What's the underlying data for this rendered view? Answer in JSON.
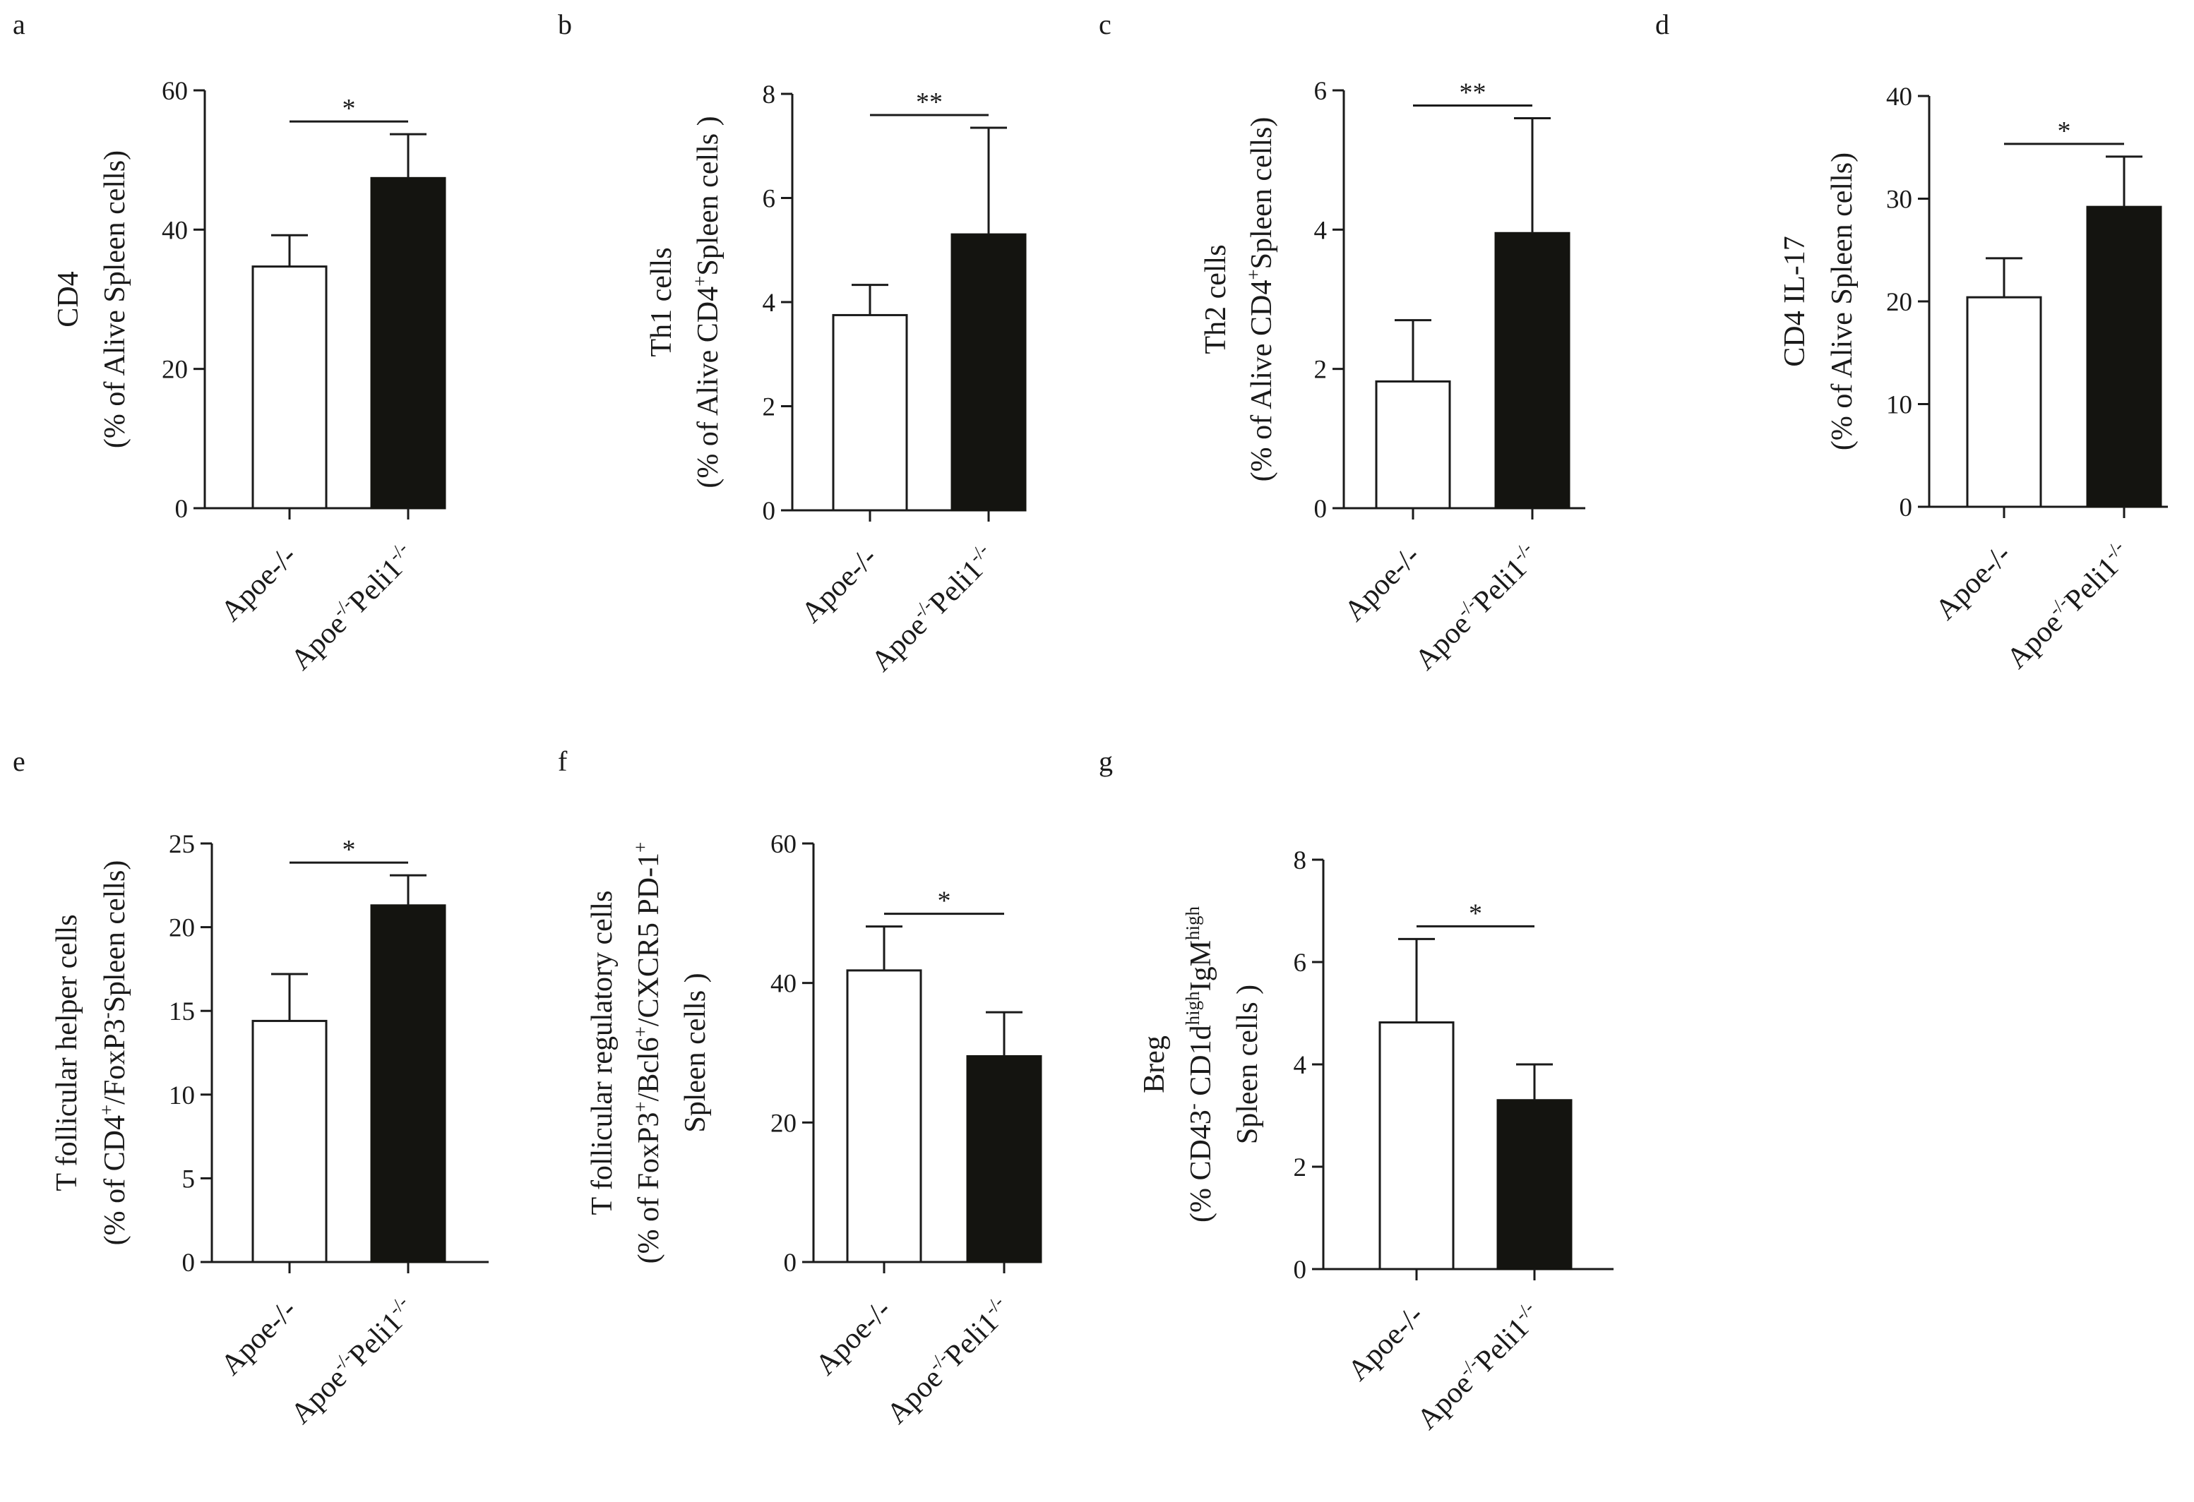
{
  "colors": {
    "control_bar": "#ffffff",
    "knockout_bar": "#141410",
    "ink": "#1a1a1a"
  },
  "categories": [
    {
      "base": "Apoe",
      "sup": "-/-",
      "label": "Apoe -/-"
    },
    {
      "base": "Apoe",
      "sup": "-/-",
      "mid": "Peli1",
      "sup2": "-/-",
      "label": "Apoe-/- Peli1-/-"
    }
  ],
  "chart_data": [
    {
      "panel": "a",
      "type": "bar",
      "ylabel": [
        [
          {
            "t": "CD4"
          }
        ],
        [
          {
            "t": "(% of Alive Spleen cells)"
          }
        ]
      ],
      "ylim": [
        0,
        60
      ],
      "yticks": [
        0,
        20,
        40,
        60
      ],
      "series": [
        {
          "name": "value",
          "values": [
            34.7,
            47.4
          ]
        },
        {
          "name": "error",
          "values": [
            4.5,
            6.3
          ]
        }
      ],
      "significance": "*"
    },
    {
      "panel": "b",
      "type": "bar",
      "ylabel": [
        [
          {
            "t": "Th1 cells"
          }
        ],
        [
          {
            "t": "(% of Alive CD4"
          },
          {
            "t": "+",
            "sup": true
          },
          {
            "t": "Spleen cells )"
          }
        ]
      ],
      "ylim": [
        0,
        8
      ],
      "yticks": [
        0,
        2,
        4,
        6,
        8
      ],
      "series": [
        {
          "name": "value",
          "values": [
            3.75,
            5.3
          ]
        },
        {
          "name": "error",
          "values": [
            0.58,
            2.05
          ]
        }
      ],
      "significance": "**"
    },
    {
      "panel": "c",
      "type": "bar",
      "ylabel": [
        [
          {
            "t": "Th2 cells"
          }
        ],
        [
          {
            "t": "(% of Alive CD4"
          },
          {
            "t": "+",
            "sup": true
          },
          {
            "t": "Spleen cells)"
          }
        ]
      ],
      "ylim": [
        0,
        6
      ],
      "yticks": [
        0,
        2,
        4,
        6
      ],
      "series": [
        {
          "name": "value",
          "values": [
            1.82,
            3.95
          ]
        },
        {
          "name": "error",
          "values": [
            0.88,
            1.65
          ]
        }
      ],
      "significance": "**"
    },
    {
      "panel": "d",
      "type": "bar",
      "ylabel": [
        [
          {
            "t": "CD4 IL-17"
          }
        ],
        [
          {
            "t": "(% of Alive Spleen cells)"
          }
        ]
      ],
      "ylim": [
        0,
        40
      ],
      "yticks": [
        0,
        10,
        20,
        30,
        40
      ],
      "series": [
        {
          "name": "value",
          "values": [
            20.4,
            29.2
          ]
        },
        {
          "name": "error",
          "values": [
            3.8,
            4.9
          ]
        }
      ],
      "significance": "*"
    },
    {
      "panel": "e",
      "type": "bar",
      "ylabel": [
        [
          {
            "t": "T follicular helper cells"
          }
        ],
        [
          {
            "t": "(% of CD4"
          },
          {
            "t": "+",
            "sup": true
          },
          {
            "t": "/FoxP3"
          },
          {
            "t": "-",
            "sup": true
          },
          {
            "t": "Spleen cells)"
          }
        ]
      ],
      "ylim": [
        0,
        25
      ],
      "yticks": [
        0,
        5,
        10,
        15,
        20,
        25
      ],
      "series": [
        {
          "name": "value",
          "values": [
            14.4,
            21.3
          ]
        },
        {
          "name": "error",
          "values": [
            2.8,
            1.8
          ]
        }
      ],
      "significance": "*"
    },
    {
      "panel": "f",
      "type": "bar",
      "ylabel": [
        [
          {
            "t": "T follicular regulatory cells"
          }
        ],
        [
          {
            "t": "(% of FoxP3"
          },
          {
            "t": "+",
            "sup": true
          },
          {
            "t": "/Bcl6"
          },
          {
            "t": "+",
            "sup": true
          },
          {
            "t": "/CXCR5 PD-1"
          },
          {
            "t": "+",
            "sup": true
          }
        ],
        [
          {
            "t": "Spleen cells )"
          }
        ]
      ],
      "ylim": [
        0,
        60
      ],
      "yticks": [
        0,
        20,
        40,
        60
      ],
      "series": [
        {
          "name": "value",
          "values": [
            41.8,
            29.5
          ]
        },
        {
          "name": "error",
          "values": [
            6.3,
            6.3
          ]
        }
      ],
      "significance": "*"
    },
    {
      "panel": "g",
      "type": "bar",
      "ylabel": [
        [
          {
            "t": "Breg"
          }
        ],
        [
          {
            "t": "(% CD43"
          },
          {
            "t": "-",
            "sup": true
          },
          {
            "t": " CD1d"
          },
          {
            "t": "high",
            "sup": true
          },
          {
            "t": "IgM"
          },
          {
            "t": "high",
            "sup": true
          }
        ],
        [
          {
            "t": "Spleen cells )"
          }
        ]
      ],
      "ylim": [
        0,
        8
      ],
      "yticks": [
        0,
        2,
        4,
        6,
        8
      ],
      "series": [
        {
          "name": "value",
          "values": [
            4.82,
            3.3
          ]
        },
        {
          "name": "error",
          "values": [
            1.63,
            0.7
          ]
        }
      ],
      "significance": "*"
    }
  ]
}
